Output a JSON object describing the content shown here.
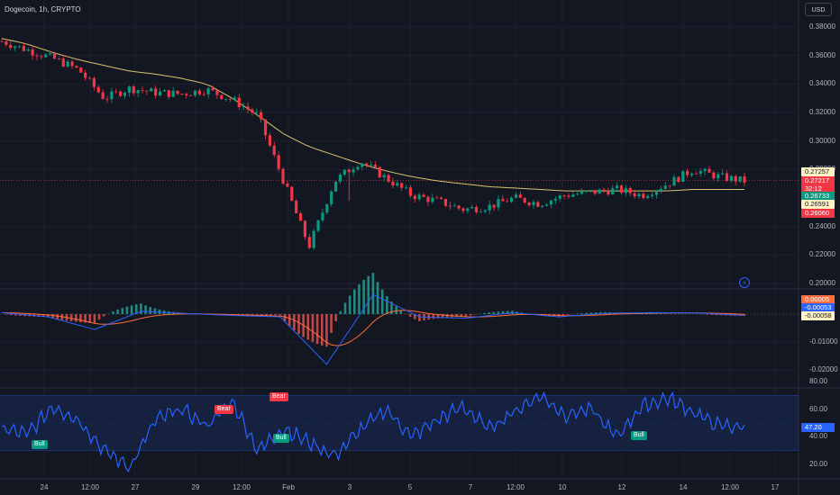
{
  "symbol": {
    "title": "Dogecoin, 1h, CRYPTO"
  },
  "currency_button": "USD",
  "price_axis": [
    "0.38000",
    "0.36000",
    "0.34000",
    "0.32000",
    "0.30000",
    "0.28000",
    "0.24000",
    "0.22000",
    "0.20000"
  ],
  "macd_axis": [
    "-0.01000",
    "-0.02000"
  ],
  "rsi_axis": [
    "80.00",
    "60.00",
    "40.00",
    "20.00"
  ],
  "time_axis": [
    "24",
    "12:00",
    "27",
    "29",
    "12:00",
    "Feb",
    "3",
    "5",
    "7",
    "12:00",
    "10",
    "12",
    "14",
    "12:00",
    "17"
  ],
  "price_tags": [
    {
      "text": "0.27257",
      "bg": "#fff3c4",
      "fg": "#131722"
    },
    {
      "text": "0.27217",
      "bg": "#f23645",
      "fg": "#ffffff"
    },
    {
      "text": "32:12",
      "bg": "#f23645",
      "fg": "#ffffff"
    },
    {
      "text": "0.26733",
      "bg": "#089981",
      "fg": "#ffffff"
    },
    {
      "text": "0.26591",
      "bg": "#fff3c4",
      "fg": "#131722"
    },
    {
      "text": "0.26060",
      "bg": "#f23645",
      "fg": "#ffffff"
    }
  ],
  "macd_tags": [
    {
      "text": "0.00005",
      "bg": "#ff6d3a",
      "fg": "#ffffff"
    },
    {
      "text": "-0.00053",
      "bg": "#2962ff",
      "fg": "#ffffff"
    },
    {
      "text": "-0.00058",
      "bg": "#fff3c4",
      "fg": "#131722"
    }
  ],
  "rsi_tag": {
    "text": "47.20",
    "bg": "#2962ff",
    "fg": "#ffffff"
  },
  "signals": [
    {
      "text": "Bull",
      "kind": "bull"
    },
    {
      "text": "Bear",
      "kind": "bear"
    },
    {
      "text": "Bear",
      "kind": "bear"
    },
    {
      "text": "Bull",
      "kind": "bull"
    },
    {
      "text": "Bull",
      "kind": "bull"
    }
  ],
  "alert_icon": "lightning-icon",
  "colors": {
    "up": "#089981",
    "down": "#f23645",
    "ma": "#d8c36a",
    "rsi": "#2962ff",
    "macd": "#2962ff",
    "signal": "#ff6d3a"
  },
  "chart_data": {
    "type": "line",
    "x": [
      "24",
      "12:00",
      "27",
      "29",
      "12:00",
      "Feb",
      "3",
      "5",
      "7",
      "12:00",
      "10",
      "12",
      "14",
      "12:00",
      "17"
    ],
    "series_price_close": [
      0.37,
      0.364,
      0.358,
      0.35,
      0.33,
      0.337,
      0.334,
      0.333,
      0.336,
      0.329,
      0.318,
      0.272,
      0.226,
      0.272,
      0.286,
      0.274,
      0.262,
      0.258,
      0.252,
      0.254,
      0.26,
      0.256,
      0.262,
      0.264,
      0.266,
      0.262,
      0.27,
      0.28,
      0.275,
      0.272
    ],
    "series_ma": [
      0.372,
      0.368,
      0.362,
      0.357,
      0.353,
      0.349,
      0.347,
      0.344,
      0.34,
      0.33,
      0.318,
      0.305,
      0.296,
      0.29,
      0.284,
      0.279,
      0.275,
      0.272,
      0.27,
      0.268,
      0.267,
      0.266,
      0.265,
      0.265,
      0.265,
      0.265,
      0.265,
      0.266,
      0.266,
      0.266
    ],
    "series_macd": [
      0.0005,
      -0.001,
      -0.0055,
      0.001,
      0.0002,
      -0.0005,
      -0.001,
      -0.018,
      0.007,
      -0.001,
      -0.0015,
      0.0005,
      -0.001,
      0.0003,
      0.0005,
      0.0004,
      -0.0005
    ],
    "series_rsi": [
      46,
      42,
      62,
      52,
      30,
      18,
      52,
      60,
      48,
      66,
      30,
      46,
      36,
      26,
      45,
      60,
      40,
      52,
      62,
      46,
      58,
      70,
      56,
      60,
      40,
      62,
      68,
      58,
      48,
      47
    ],
    "ylim_price": [
      0.2,
      0.38
    ],
    "ylim_macd": [
      -0.021,
      0.002
    ],
    "ylim_rsi": [
      15,
      85
    ]
  }
}
